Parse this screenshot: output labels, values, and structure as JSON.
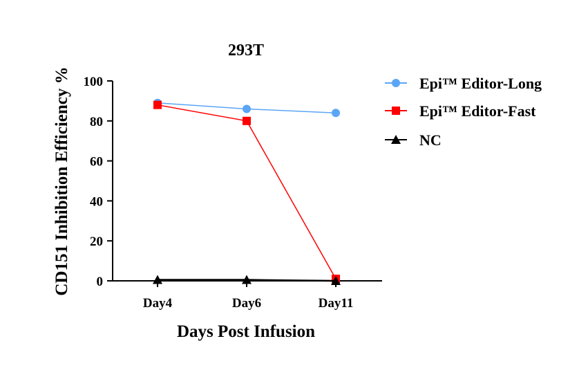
{
  "chart_data": {
    "type": "line",
    "title": "293T",
    "xlabel": "Days Post Infusion",
    "ylabel": "CD151 Inhibition Efficiency %",
    "categories": [
      "Day4",
      "Day6",
      "Day11"
    ],
    "ylim": [
      0,
      100
    ],
    "yticks": [
      0,
      20,
      40,
      60,
      80,
      100
    ],
    "legend_position": "right",
    "series": [
      {
        "name": "Epi™ Editor-Long",
        "values": [
          89,
          86,
          84
        ],
        "color": "#5aa5f5",
        "marker": "circle"
      },
      {
        "name": "Epi™ Editor-Fast",
        "values": [
          88,
          80,
          1
        ],
        "color": "#ff0000",
        "marker": "square"
      },
      {
        "name": "NC",
        "values": [
          0.5,
          0.5,
          0
        ],
        "color": "#000000",
        "marker": "triangle"
      }
    ]
  }
}
